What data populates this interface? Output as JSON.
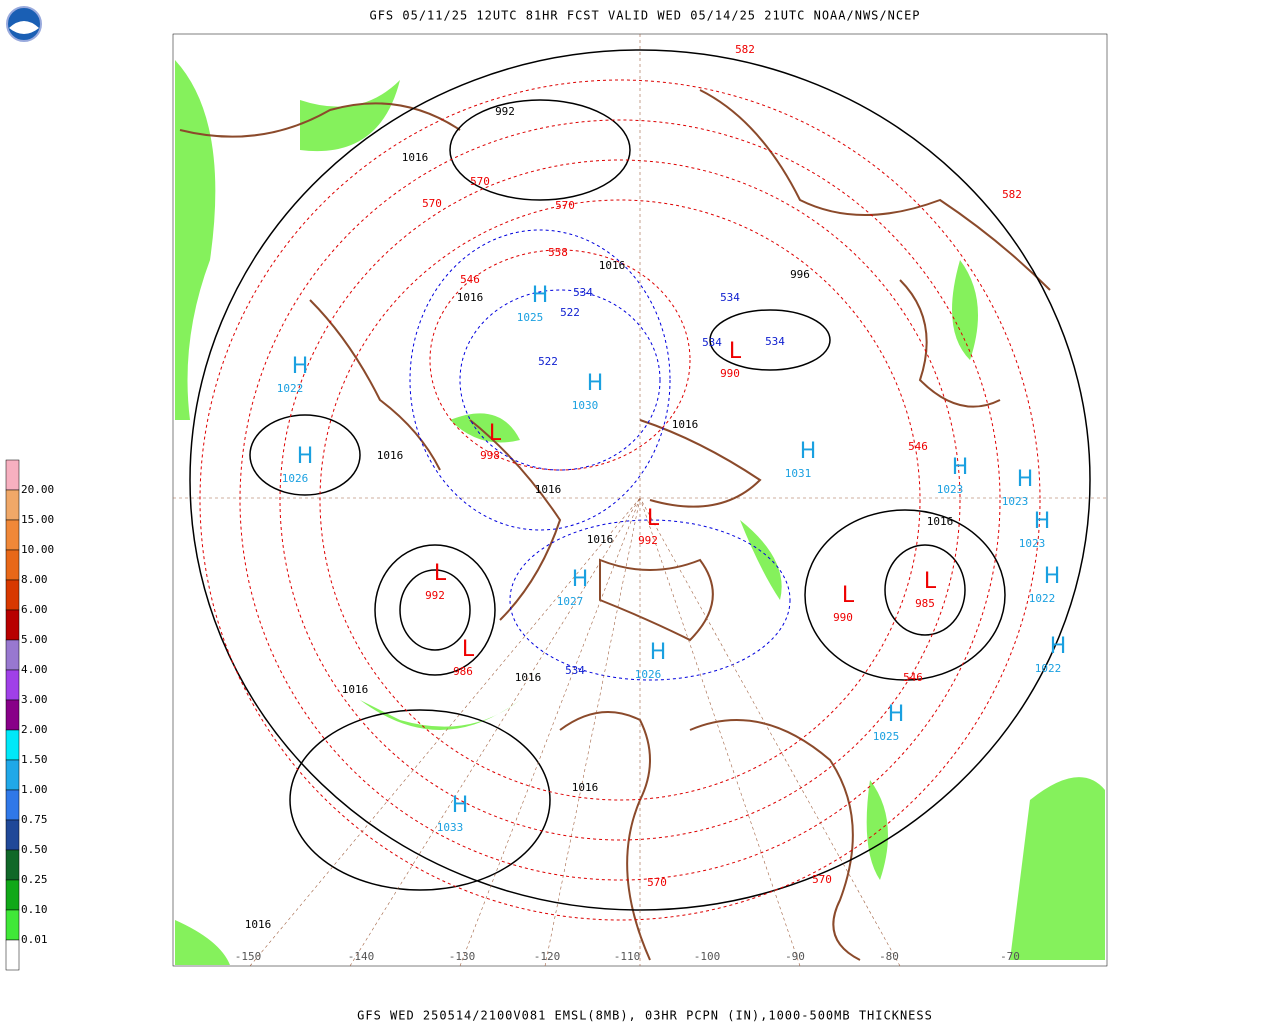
{
  "header": {
    "title": "GFS 05/11/25 12UTC 81HR FCST VALID WED 05/14/25 21UTC NOAA/NWS/NCEP"
  },
  "footer": {
    "caption": "GFS WED 250514/2100V081 EMSL(8MB), 03HR PCPN (IN),1000-500MB THICKNESS"
  },
  "legend": {
    "labels": [
      "20.00",
      "15.00",
      "10.00",
      "8.00",
      "6.00",
      "5.00",
      "4.00",
      "3.00",
      "2.00",
      "1.50",
      "1.00",
      "0.75",
      "0.50",
      "0.25",
      "0.10",
      "0.01"
    ],
    "colors": [
      "#f7b0c0",
      "#f0a868",
      "#f08838",
      "#e86818",
      "#d83800",
      "#b80000",
      "#9878d0",
      "#a040e8",
      "#880088",
      "#00e8f8",
      "#20a8e8",
      "#3078e8",
      "#204898",
      "#106828",
      "#10a818",
      "#40e838",
      "#ffffff"
    ]
  },
  "longitudes": [
    "-150",
    "-140",
    "-130",
    "-120",
    "-110",
    "-100",
    "-90",
    "-80",
    "-70"
  ],
  "highs": [
    "1022",
    "1026",
    "1025",
    "1030",
    "1031",
    "1023",
    "1023",
    "1023",
    "1022",
    "1022",
    "1025",
    "1027",
    "1033",
    "1026"
  ],
  "lows": [
    "998",
    "992",
    "986",
    "992",
    "990",
    "985",
    "990"
  ],
  "isobar_labels": [
    "1016",
    "1016",
    "1016",
    "1016",
    "1016",
    "1016",
    "1016",
    "1016",
    "1016",
    "1016",
    "1016",
    "1016",
    "992",
    "996"
  ],
  "thickness_warm_labels": [
    "570",
    "570",
    "570",
    "582",
    "546",
    "546",
    "546",
    "558",
    "570",
    "570",
    "582"
  ],
  "thickness_cold_labels": [
    "534",
    "522",
    "522",
    "534",
    "534",
    "534",
    "534"
  ]
}
